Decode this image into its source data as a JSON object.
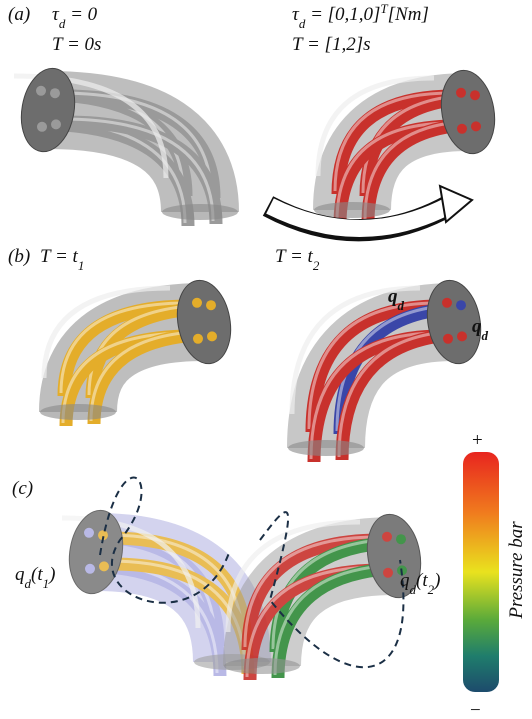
{
  "labels": [
    {
      "parts": [
        {
          "t": "(a)"
        }
      ]
    },
    {
      "parts": [
        {
          "t": "τ"
        },
        {
          "sub": "d"
        },
        {
          "t": " = 0"
        }
      ]
    },
    {
      "parts": [
        {
          "t": "T = 0s"
        }
      ]
    },
    {
      "parts": [
        {
          "t": "τ"
        },
        {
          "sub": "d"
        },
        {
          "t": " = [0,1,0]"
        },
        {
          "sup": "T"
        },
        {
          "t": "[Nm]"
        }
      ]
    },
    {
      "parts": [
        {
          "t": "T = [1,2]s"
        }
      ]
    },
    {
      "parts": [
        {
          "t": "T = t"
        },
        {
          "sub": "2"
        }
      ]
    },
    {
      "parts": [
        {
          "t": "(b)"
        }
      ]
    },
    {
      "parts": [
        {
          "t": "T = t"
        },
        {
          "sub": "1"
        }
      ]
    },
    {
      "parts": [
        {
          "t": "q"
        },
        {
          "sub": "d"
        }
      ]
    },
    {
      "parts": [
        {
          "t": "q"
        },
        {
          "sub": "d"
        }
      ]
    },
    {
      "parts": [
        {
          "t": "(c)"
        }
      ]
    },
    {
      "parts": [
        {
          "t": "q"
        },
        {
          "sub": "d"
        },
        {
          "t": "(t"
        },
        {
          "sub": "1"
        },
        {
          "t": ")"
        }
      ]
    },
    {
      "parts": [
        {
          "t": "q"
        },
        {
          "sub": "d"
        },
        {
          "t": "(t"
        },
        {
          "sub": "2"
        },
        {
          "t": ")"
        }
      ]
    },
    {
      "parts": [
        {
          "t": "+"
        }
      ]
    },
    {
      "parts": [
        {
          "t": "−"
        }
      ]
    },
    {
      "parts": [
        {
          "t": "Pressure bar"
        }
      ]
    }
  ]
}
